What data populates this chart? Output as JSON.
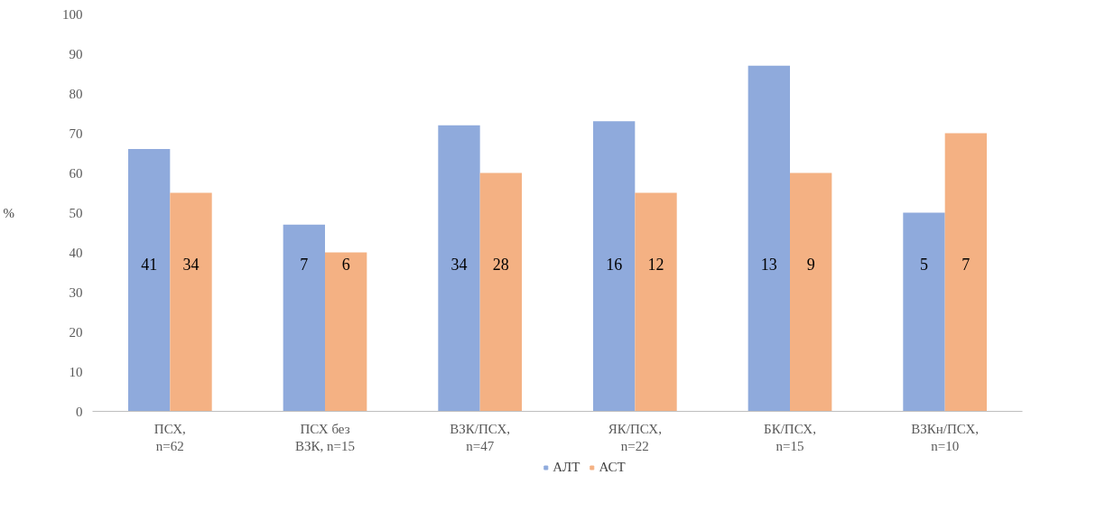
{
  "chart_data": {
    "type": "bar",
    "ylabel": "%",
    "categories": [
      "ПСХ,\nn=62",
      "ПСХ без\nВЗК, n=15",
      "ВЗК/ПСХ,\nn=47",
      "ЯК/ПСХ,\nn=22",
      "БК/ПСХ,\nn=15",
      "ВЗКн/ПСХ,\nn=10"
    ],
    "series": [
      {
        "name": "АЛТ",
        "color": "#8faadc",
        "values": [
          66,
          47,
          72,
          73,
          87,
          50
        ]
      },
      {
        "name": "АСТ",
        "color": "#f4b183",
        "values": [
          55,
          40,
          60,
          55,
          60,
          70
        ]
      }
    ],
    "annotations": [
      {
        "text": "41",
        "x": "ПСХ,\nn=62",
        "y": 37
      },
      {
        "text": "34",
        "x": "ПСХ,\nn=62",
        "y": 37
      },
      {
        "text": "7",
        "x": "ПСХ без\nВЗК, n=15",
        "y": 37
      },
      {
        "text": "6",
        "x": "ПСХ без\nВЗК, n=15",
        "y": 37
      },
      {
        "text": "34",
        "x": "ВЗК/ПСХ,\nn=47",
        "y": 37
      },
      {
        "text": "28",
        "x": "ВЗК/ПСХ,\nn=47",
        "y": 37
      },
      {
        "text": "16",
        "x": "ЯК/ПСХ,\nn=22",
        "y": 37
      },
      {
        "text": "12",
        "x": "ЯК/ПСХ,\nn=22",
        "y": 37
      },
      {
        "text": "13",
        "x": "БК/ПСХ,\nn=15",
        "y": 37
      },
      {
        "text": "9",
        "x": "БК/ПСХ,\nn=15",
        "y": 37
      },
      {
        "text": "5",
        "x": "ВЗКн/ПСХ,\nn=10",
        "y": 37
      },
      {
        "text": "7",
        "x": "ВЗКн/ПСХ,\nn=10",
        "y": 37
      }
    ],
    "ylim": [
      0,
      100
    ],
    "yticks": [
      0,
      10,
      20,
      30,
      40,
      50,
      60,
      70,
      80,
      90,
      100
    ],
    "grid": false,
    "legend": "bottom"
  }
}
